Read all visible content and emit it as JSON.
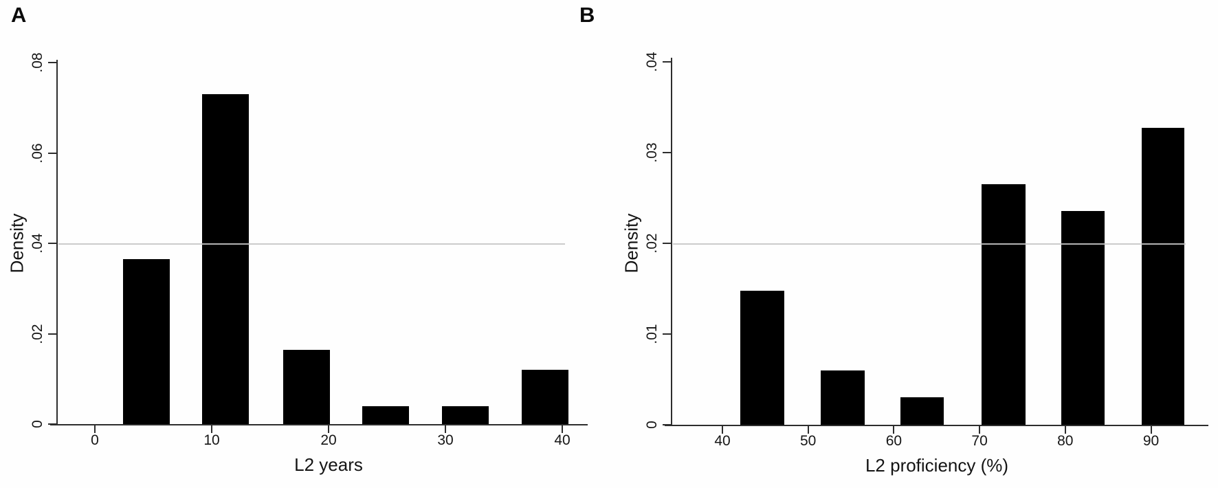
{
  "figure_title": "Two-panel density histogram figure",
  "panels": [
    {
      "letter": "A",
      "ylabel": "Density",
      "xlabel": "L2 years"
    },
    {
      "letter": "B",
      "ylabel": "Density",
      "xlabel": "L2 proficiency (%)"
    }
  ],
  "chart_data": [
    {
      "type": "bar",
      "panel_label": "A",
      "xlabel": "L2 years",
      "ylabel": "Density",
      "ylim": [
        0,
        0.08
      ],
      "xlim": [
        -3.2,
        42.3
      ],
      "grid": "single reference line over bars",
      "ref_line_y": 0.04,
      "bar_color": "#000000",
      "x_ticks": [
        {
          "value": 0,
          "label": "0"
        },
        {
          "value": 10,
          "label": "10"
        },
        {
          "value": 20,
          "label": "20"
        },
        {
          "value": 30,
          "label": "30"
        },
        {
          "value": 40,
          "label": "40"
        }
      ],
      "y_ticks": [
        {
          "value": 0,
          "label": "0"
        },
        {
          "value": 0.02,
          "label": ".02"
        },
        {
          "value": 0.04,
          "label": ".04"
        },
        {
          "value": 0.06,
          "label": ".06"
        },
        {
          "value": 0.08,
          "label": ".08"
        }
      ],
      "bars": [
        {
          "x_start": 2.4,
          "x_end": 6.4,
          "density": 0.0365
        },
        {
          "x_start": 9.2,
          "x_end": 13.2,
          "density": 0.073
        },
        {
          "x_start": 16.1,
          "x_end": 20.1,
          "density": 0.0165
        },
        {
          "x_start": 22.9,
          "x_end": 26.9,
          "density": 0.004
        },
        {
          "x_start": 29.7,
          "x_end": 33.7,
          "density": 0.004
        },
        {
          "x_start": 36.5,
          "x_end": 40.5,
          "density": 0.012
        }
      ]
    },
    {
      "type": "bar",
      "panel_label": "B",
      "xlabel": "L2 proficiency (%)",
      "ylabel": "Density",
      "ylim": [
        0,
        0.04
      ],
      "xlim": [
        33.3,
        96.7
      ],
      "grid": "single reference line over bars",
      "ref_line_y": 0.02,
      "bar_color": "#000000",
      "x_ticks": [
        {
          "value": 40,
          "label": "40"
        },
        {
          "value": 50,
          "label": "50"
        },
        {
          "value": 60,
          "label": "60"
        },
        {
          "value": 70,
          "label": "70"
        },
        {
          "value": 80,
          "label": "80"
        },
        {
          "value": 90,
          "label": "90"
        }
      ],
      "y_ticks": [
        {
          "value": 0,
          "label": "0"
        },
        {
          "value": 0.01,
          "label": ".01"
        },
        {
          "value": 0.02,
          "label": ".02"
        },
        {
          "value": 0.03,
          "label": ".03"
        },
        {
          "value": 0.04,
          "label": ".04"
        }
      ],
      "bars": [
        {
          "x_start": 42.1,
          "x_end": 47.2,
          "density": 0.0148
        },
        {
          "x_start": 51.5,
          "x_end": 56.6,
          "density": 0.006
        },
        {
          "x_start": 60.8,
          "x_end": 65.8,
          "density": 0.003
        },
        {
          "x_start": 70.2,
          "x_end": 75.4,
          "density": 0.0265
        },
        {
          "x_start": 79.5,
          "x_end": 84.6,
          "density": 0.0236
        },
        {
          "x_start": 88.9,
          "x_end": 93.9,
          "density": 0.0327
        }
      ]
    }
  ]
}
